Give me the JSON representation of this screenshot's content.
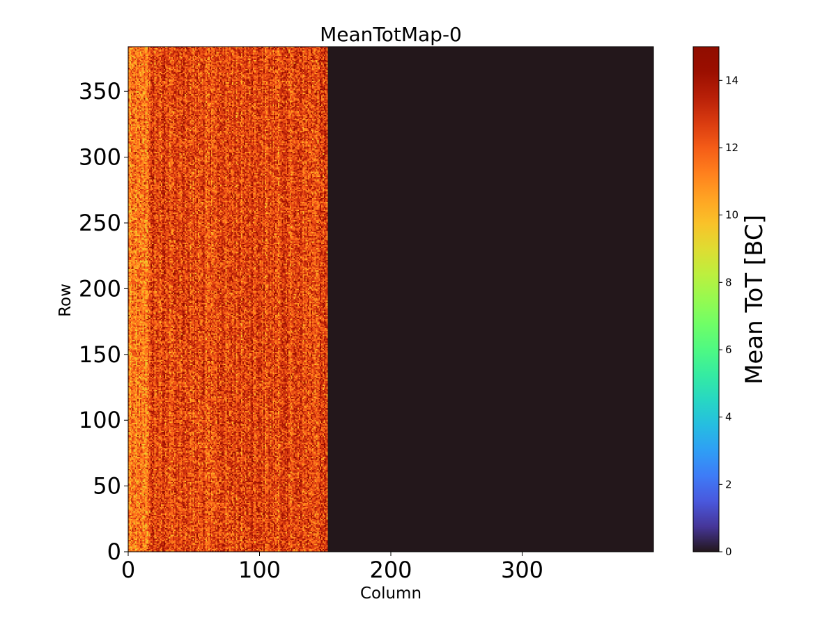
{
  "chart_data": {
    "type": "heatmap",
    "title": "MeanTotMap-0",
    "xlabel": "Column",
    "ylabel": "Row",
    "xlim": [
      0,
      400
    ],
    "ylim": [
      0,
      384
    ],
    "x_ticks": [
      0,
      100,
      200,
      300
    ],
    "y_ticks": [
      0,
      50,
      100,
      150,
      200,
      250,
      300,
      350
    ],
    "colorbar": {
      "label": "Mean ToT [BC]",
      "range": [
        0,
        15
      ],
      "ticks": [
        0,
        2,
        4,
        6,
        8,
        10,
        12,
        14
      ],
      "colormap": "turbo"
    },
    "regions": [
      {
        "columns": [
          0,
          152
        ],
        "rows": [
          0,
          384
        ],
        "typical_value": 12.5,
        "value_range": [
          9,
          15
        ],
        "description_value": "noisy"
      },
      {
        "columns": [
          152,
          400
        ],
        "rows": [
          0,
          384
        ],
        "value": 0
      }
    ],
    "grid": false
  }
}
